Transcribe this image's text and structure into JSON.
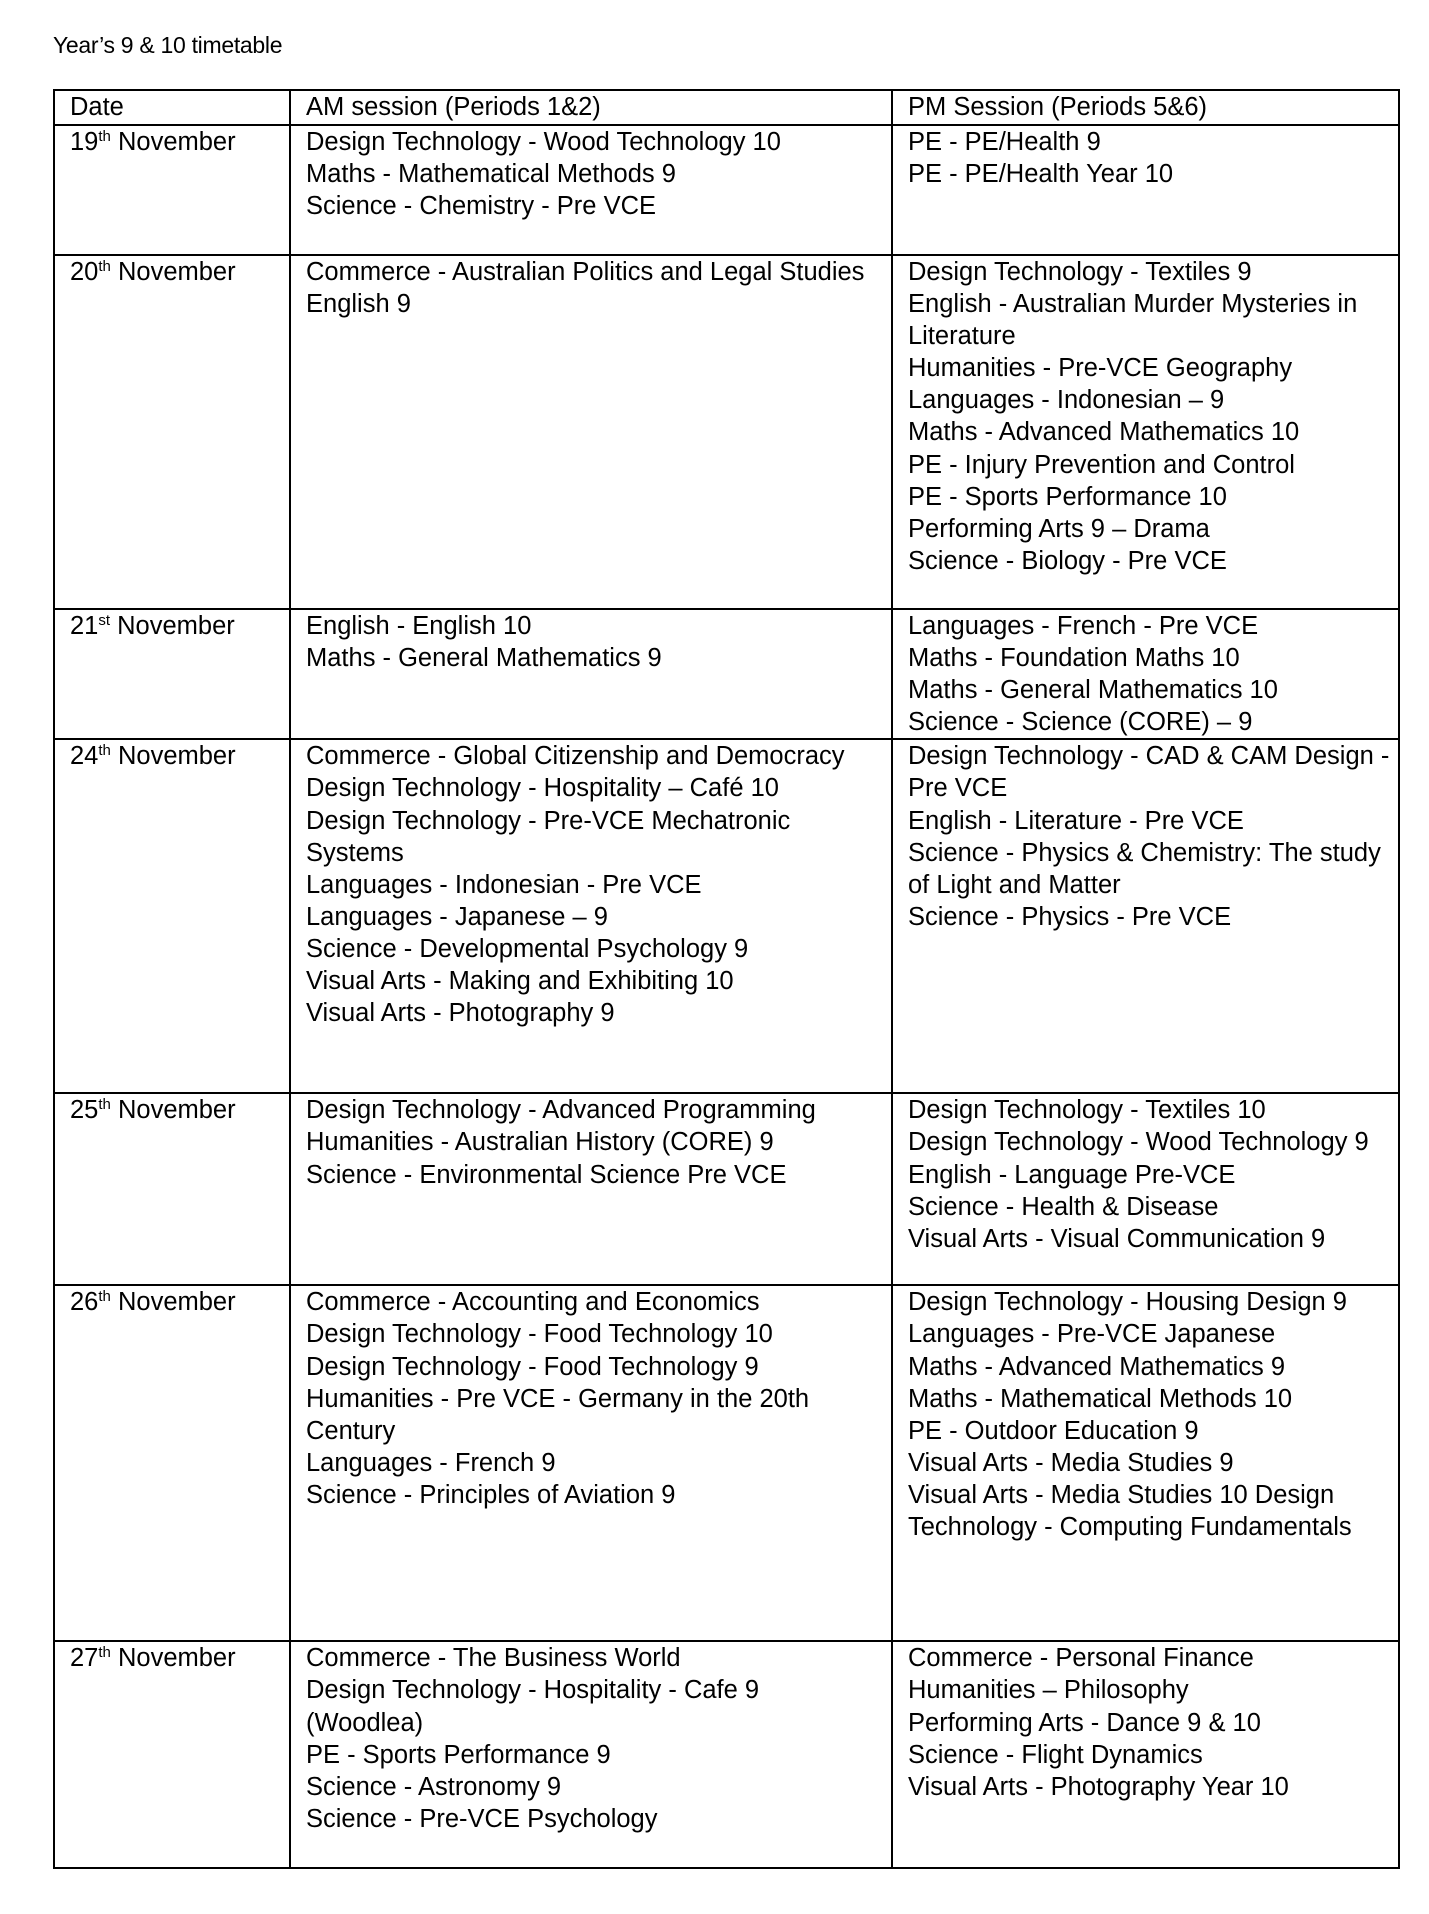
{
  "title": "Year’s 9 & 10 timetable",
  "headers": [
    "Date",
    "AM session (Periods 1&2)",
    "PM Session (Periods 5&6)"
  ],
  "rows": [
    {
      "day": "19",
      "suffix": "th",
      "month": " November",
      "am": [
        "Design Technology - Wood Technology 10",
        "Maths - Mathematical Methods 9",
        "Science - Chemistry - Pre VCE"
      ],
      "pm": [
        "PE - PE/Health 9",
        "PE - PE/Health Year 10"
      ]
    },
    {
      "day": "20",
      "suffix": "th",
      "month": " November",
      "am": [
        "Commerce - Australian Politics and Legal Studies",
        "English 9"
      ],
      "pm": [
        "Design Technology - Textiles 9",
        "English - Australian Murder Mysteries in Literature",
        "Humanities - Pre-VCE Geography",
        "Languages - Indonesian – 9",
        "Maths - Advanced Mathematics 10",
        "PE - Injury Prevention and Control",
        "PE - Sports Performance 10",
        "Performing Arts 9 – Drama",
        "Science - Biology - Pre VCE"
      ]
    },
    {
      "day": "21",
      "suffix": "st",
      "month": " November",
      "am": [
        "English - English 10",
        "Maths - General Mathematics 9"
      ],
      "pm": [
        "Languages - French - Pre VCE",
        "Maths - Foundation Maths 10",
        "Maths - General Mathematics 10",
        "Science - Science (CORE) – 9"
      ]
    },
    {
      "day": "24",
      "suffix": "th",
      "month": " November",
      "am": [
        "Commerce - Global Citizenship and Democracy",
        "Design Technology - Hospitality – Café 10",
        "Design Technology - Pre-VCE Mechatronic Systems",
        "Languages - Indonesian - Pre VCE",
        "Languages - Japanese – 9",
        "Science - Developmental Psychology 9",
        "Visual Arts - Making and Exhibiting 10",
        "Visual Arts - Photography 9"
      ],
      "pm": [
        "Design Technology - CAD & CAM Design - Pre VCE",
        "English - Literature - Pre VCE",
        "Science - Physics & Chemistry: The study of Light and Matter",
        "Science - Physics - Pre VCE"
      ]
    },
    {
      "day": "25",
      "suffix": "th",
      "month": " November",
      "am": [
        "Design Technology - Advanced Programming",
        "Humanities - Australian History (CORE) 9",
        "Science - Environmental Science Pre VCE"
      ],
      "pm": [
        "Design Technology - Textiles 10",
        "Design Technology - Wood Technology 9",
        "English - Language Pre-VCE",
        "Science - Health & Disease",
        "Visual Arts - Visual Communication 9"
      ]
    },
    {
      "day": "26",
      "suffix": "th",
      "month": " November",
      "am": [
        "Commerce - Accounting and Economics",
        "Design Technology - Food Technology 10",
        "Design Technology - Food Technology 9",
        "Humanities - Pre VCE - Germany in the 20th Century",
        "Languages - French 9",
        "Science - Principles of Aviation 9"
      ],
      "pm": [
        "Design Technology - Housing Design 9",
        "Languages - Pre-VCE Japanese",
        "Maths - Advanced Mathematics 9",
        "Maths - Mathematical Methods 10",
        "PE - Outdoor Education 9",
        "Visual Arts - Media Studies 9",
        "Visual Arts - Media Studies 10 Design Technology - Computing Fundamentals"
      ]
    },
    {
      "day": "27",
      "suffix": "th",
      "month": " November",
      "am": [
        "Commerce - The Business World",
        "Design Technology - Hospitality - Cafe 9 (Woodlea)",
        "PE - Sports Performance 9",
        "Science - Astronomy 9",
        "Science - Pre-VCE Psychology"
      ],
      "pm": [
        "Commerce - Personal Finance",
        "Humanities – Philosophy",
        "Performing Arts - Dance 9 & 10",
        "Science - Flight Dynamics",
        "Visual Arts - Photography Year 10"
      ]
    }
  ]
}
